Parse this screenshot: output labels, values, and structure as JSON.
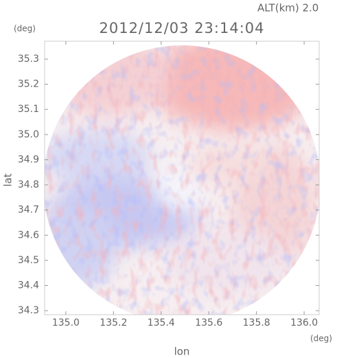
{
  "chart_data": {
    "type": "radar-field",
    "title": "2012/12/03 23:14:04",
    "subtitle": "ALT(km) 2.0",
    "xlabel": "lon",
    "ylabel": "lat",
    "x_unit": "(deg)",
    "y_unit": "(deg)",
    "xlim": [
      134.911,
      136.063
    ],
    "ylim": [
      34.284,
      35.371
    ],
    "xticks": [
      {
        "value": 135,
        "label": "135.0"
      },
      135.2,
      135.4,
      135.6,
      135.8,
      {
        "value": 136,
        "label": "136.0"
      }
    ],
    "yticks": [
      34.3,
      34.4,
      34.5,
      34.6,
      34.7,
      34.8,
      34.9,
      {
        "value": 35,
        "label": "35.0"
      },
      35.1,
      35.2,
      35.3
    ]
  }
}
